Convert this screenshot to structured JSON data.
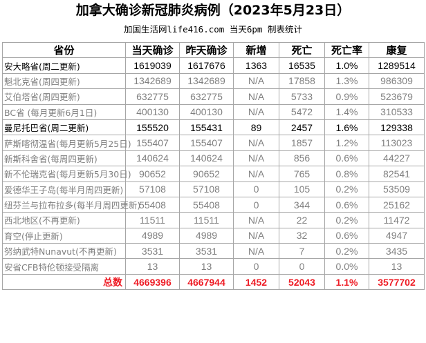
{
  "title": "加拿大确诊新冠肺炎病例（2023年5月23日）",
  "subtitle": "加国生活网life416.com 当天6pm 制表统计",
  "colors": {
    "total_text": "#ee1c25",
    "stale_text": "#808080",
    "grid": "#a6a6a6"
  },
  "table": {
    "headers": [
      "省份",
      "当天确诊",
      "昨天确诊",
      "新增",
      "死亡",
      "死亡率",
      "康复"
    ],
    "rows": [
      {
        "province": "安大略省(周二更新)",
        "today": "1619039",
        "yesterday": "1617676",
        "new": "1363",
        "deaths": "16535",
        "rate": "1.0%",
        "recovered": "1289514",
        "style": "dark",
        "size": ""
      },
      {
        "province": "魁北克省(周四更新)",
        "today": "1342689",
        "yesterday": "1342689",
        "new": "N/A",
        "deaths": "17858",
        "rate": "1.3%",
        "recovered": "986309",
        "style": "gray",
        "size": ""
      },
      {
        "province": "艾伯塔省(周四更新)",
        "today": "632775",
        "yesterday": "632775",
        "new": "N/A",
        "deaths": "5733",
        "rate": "0.9%",
        "recovered": "523679",
        "style": "gray",
        "size": ""
      },
      {
        "province": "BC省 (每月更新6月1日)",
        "today": "400130",
        "yesterday": "400130",
        "new": "N/A",
        "deaths": "5472",
        "rate": "1.4%",
        "recovered": "310533",
        "style": "gray",
        "size": "s1"
      },
      {
        "province": "曼尼托巴省(周二更新)",
        "today": "155520",
        "yesterday": "155431",
        "new": "89",
        "deaths": "2457",
        "rate": "1.6%",
        "recovered": "129338",
        "style": "dark",
        "size": ""
      },
      {
        "province": "萨斯喀彻温省(每月更新5月25日)",
        "today": "155407",
        "yesterday": "155407",
        "new": "N/A",
        "deaths": "1857",
        "rate": "1.2%",
        "recovered": "113023",
        "style": "gray",
        "size": "s3"
      },
      {
        "province": "新斯科舍省(每周四更新)",
        "today": "140624",
        "yesterday": "140624",
        "new": "N/A",
        "deaths": "856",
        "rate": "0.6%",
        "recovered": "44227",
        "style": "gray",
        "size": "s2"
      },
      {
        "province": "新不伦瑞克省(每月更新5月30日)",
        "today": "90652",
        "yesterday": "90652",
        "new": "N/A",
        "deaths": "765",
        "rate": "0.8%",
        "recovered": "82541",
        "style": "gray",
        "size": "s3"
      },
      {
        "province": "爱德华王子岛(每半月周四更新)",
        "today": "57108",
        "yesterday": "57108",
        "new": "0",
        "deaths": "105",
        "rate": "0.2%",
        "recovered": "53509",
        "style": "gray",
        "size": "s3"
      },
      {
        "province": "纽芬兰与拉布拉多(每半月周四更新)",
        "today": "55408",
        "yesterday": "55408",
        "new": "0",
        "deaths": "344",
        "rate": "0.6%",
        "recovered": "25162",
        "style": "gray",
        "size": "s4"
      },
      {
        "province": "西北地区(不再更新)",
        "today": "11511",
        "yesterday": "11511",
        "new": "N/A",
        "deaths": "22",
        "rate": "0.2%",
        "recovered": "11472",
        "style": "gray",
        "size": ""
      },
      {
        "province": "育空(停止更新)",
        "today": "4989",
        "yesterday": "4989",
        "new": "N/A",
        "deaths": "32",
        "rate": "0.6%",
        "recovered": "4947",
        "style": "gray",
        "size": ""
      },
      {
        "province": "努纳武特Nunavut(不再更新)",
        "today": "3531",
        "yesterday": "3531",
        "new": "N/A",
        "deaths": "7",
        "rate": "0.2%",
        "recovered": "3435",
        "style": "gray",
        "size": "s4"
      },
      {
        "province": "安省CFB特伦顿接受隔离",
        "today": "13",
        "yesterday": "13",
        "new": "0",
        "deaths": "0",
        "rate": "0.0%",
        "recovered": "13",
        "style": "gray",
        "size": "s1"
      }
    ],
    "total": {
      "label": "总数",
      "today": "4669396",
      "yesterday": "4667944",
      "new": "1452",
      "deaths": "52043",
      "rate": "1.1%",
      "recovered": "3577702"
    }
  }
}
